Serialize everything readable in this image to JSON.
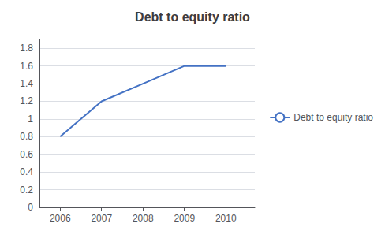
{
  "chart_data": {
    "type": "line",
    "title": "Debt to equity ratio",
    "x": [
      2006,
      2007,
      2008,
      2009,
      2010
    ],
    "series": [
      {
        "name": "Debt to equity ratio",
        "color": "#4472C4",
        "values": [
          0.8,
          1.2,
          1.4,
          1.6,
          1.6
        ]
      }
    ],
    "xlim": [
      2005.5,
      2010.7
    ],
    "xticks": [
      2006,
      2007,
      2008,
      2009,
      2010
    ],
    "ylim": [
      0,
      1.9
    ],
    "yticks": [
      0,
      0.2,
      0.4,
      0.6,
      0.8,
      1,
      1.2,
      1.4,
      1.6,
      1.8
    ],
    "grid": true,
    "legend": "right"
  }
}
